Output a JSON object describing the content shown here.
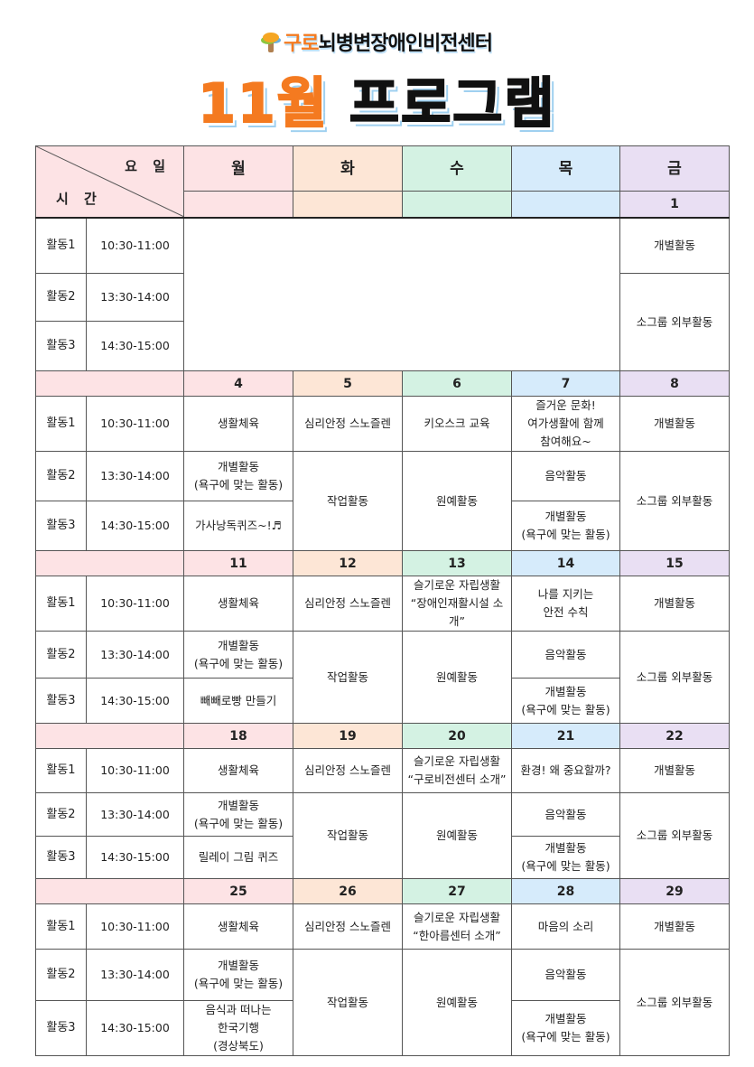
{
  "header": {
    "org_prefix": "구로",
    "org_rest": "뇌병변장애인비전센터",
    "title_month": "11월",
    "title_rest": "프로그램"
  },
  "table": {
    "corner_day": "요 일",
    "corner_time": "시 간",
    "days": [
      "월",
      "화",
      "수",
      "목",
      "금"
    ],
    "day_colors": [
      "#fde3e5",
      "#fde6d6",
      "#d4f2e3",
      "#d6ebfb",
      "#e9dff3"
    ],
    "slots": [
      {
        "label": "활동1",
        "time": "10:30-11:00"
      },
      {
        "label": "활동2",
        "time": "13:30-14:00"
      },
      {
        "label": "활동3",
        "time": "14:30-15:00"
      }
    ],
    "week1": {
      "dates": [
        "",
        "",
        "",
        "",
        "1"
      ],
      "fri_row1": "개별활동",
      "fri_row23": "소그룹 외부활동"
    },
    "weeks": [
      {
        "dates": [
          "4",
          "5",
          "6",
          "7",
          "8"
        ],
        "mon": [
          "생활체육",
          "개별활동\n(욕구에 맞는 활동)",
          "가사낭독퀴즈~!♬"
        ],
        "tue": [
          "심리안정 스노즐렌",
          "작업활동"
        ],
        "wed": [
          "키오스크 교육",
          "원예활동"
        ],
        "thu": [
          "즐거운 문화!\n여가생활에 함께\n참여해요~",
          "음악활동",
          "개별활동\n(욕구에 맞는 활동)"
        ],
        "fri": [
          "개별활동",
          "소그룹 외부활동"
        ]
      },
      {
        "dates": [
          "11",
          "12",
          "13",
          "14",
          "15"
        ],
        "mon": [
          "생활체육",
          "개별활동\n(욕구에 맞는 활동)",
          "빼빼로빵 만들기"
        ],
        "tue": [
          "심리안정 스노즐렌",
          "작업활동"
        ],
        "wed": [
          "슬기로운 자립생활\n“장애인재활시설 소개”",
          "원예활동"
        ],
        "thu": [
          "나를 지키는\n안전 수칙",
          "음악활동",
          "개별활동\n(욕구에 맞는 활동)"
        ],
        "fri": [
          "개별활동",
          "소그룹 외부활동"
        ]
      },
      {
        "dates": [
          "18",
          "19",
          "20",
          "21",
          "22"
        ],
        "mon": [
          "생활체육",
          "개별활동\n(욕구에 맞는 활동)",
          "릴레이 그림 퀴즈"
        ],
        "tue": [
          "심리안정 스노즐렌",
          "작업활동"
        ],
        "wed": [
          "슬기로운 자립생활\n“구로비전센터 소개”",
          "원예활동"
        ],
        "thu": [
          "환경! 왜 중요할까?",
          "음악활동",
          "개별활동\n(욕구에 맞는 활동)"
        ],
        "fri": [
          "개별활동",
          "소그룹 외부활동"
        ]
      },
      {
        "dates": [
          "25",
          "26",
          "27",
          "28",
          "29"
        ],
        "mon": [
          "생활체육",
          "개별활동\n(욕구에 맞는 활동)",
          "음식과 떠나는\n한국기행\n(경상북도)"
        ],
        "tue": [
          "심리안정 스노즐렌",
          "작업활동"
        ],
        "wed": [
          "슬기로운 자립생활\n“한아름센터 소개”",
          "원예활동"
        ],
        "thu": [
          "마음의 소리",
          "음악활동",
          "개별활동\n(욕구에 맞는 활동)"
        ],
        "fri": [
          "개별활동",
          "소그룹 외부활동"
        ]
      }
    ]
  }
}
